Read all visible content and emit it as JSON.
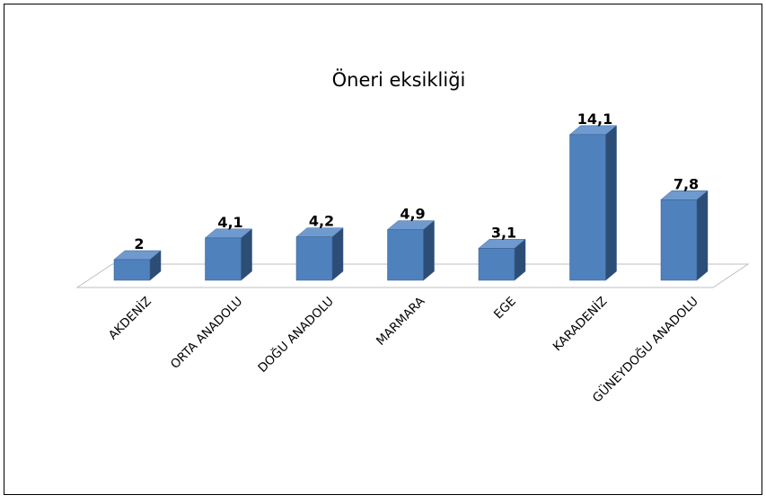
{
  "chart_data": {
    "type": "bar",
    "title": "Öneri eksikliği",
    "categories": [
      "AKDENİZ",
      "ORTA ANADOLU",
      "DOĞU ANADOLU",
      "MARMARA",
      "EGE",
      "KARADENİZ",
      "GÜNEYDOĞU ANADOLU"
    ],
    "values": [
      2,
      4.1,
      4.2,
      4.9,
      3.1,
      14.1,
      7.8
    ],
    "data_labels": [
      "2",
      "4,1",
      "4,2",
      "4,9",
      "3,1",
      "14,1",
      "7,8"
    ],
    "xlabel": "",
    "ylabel": "",
    "ylim": [
      0,
      15
    ],
    "grid": false,
    "legend": "none",
    "style": "3d-column",
    "colors": {
      "front": "#4F81BD",
      "side": "#2C4D75",
      "top": "#6F9AD0",
      "stroke": "#385D8A"
    }
  }
}
